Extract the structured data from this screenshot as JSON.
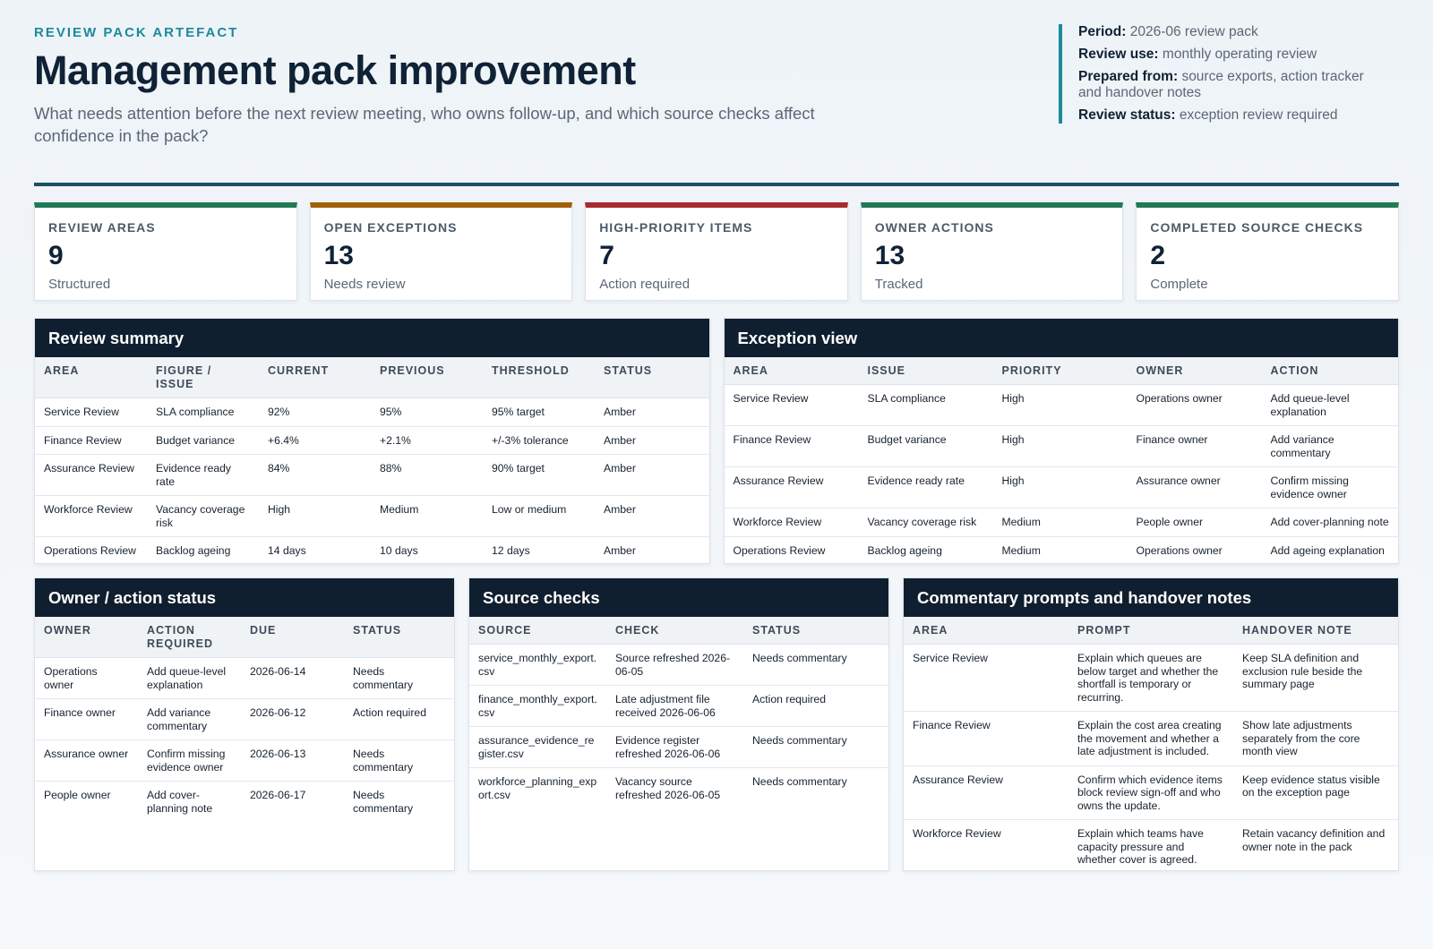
{
  "header": {
    "eyebrow": "REVIEW PACK ARTEFACT",
    "title": "Management pack improvement",
    "subtitle": "What needs attention before the next review meeting, who owns follow-up, and which source checks affect confidence in the pack?"
  },
  "meta": {
    "period_label": "Period:",
    "period_value": "2026-06 review pack",
    "use_label": "Review use:",
    "use_value": "monthly operating review",
    "prepared_label": "Prepared from:",
    "prepared_value": "source exports, action tracker and handover notes",
    "status_label": "Review status:",
    "status_value": "exception review required"
  },
  "kpis": [
    {
      "label": "REVIEW AREAS",
      "value": "9",
      "note": "Structured",
      "color": "#1f7a55"
    },
    {
      "label": "OPEN EXCEPTIONS",
      "value": "13",
      "note": "Needs review",
      "color": "#a0600a"
    },
    {
      "label": "HIGH-PRIORITY ITEMS",
      "value": "7",
      "note": "Action required",
      "color": "#a8292e"
    },
    {
      "label": "OWNER ACTIONS",
      "value": "13",
      "note": "Tracked",
      "color": "#1f7a55"
    },
    {
      "label": "COMPLETED SOURCE CHECKS",
      "value": "2",
      "note": "Complete",
      "color": "#1f7a55"
    }
  ],
  "review_summary": {
    "title": "Review summary",
    "columns": [
      "AREA",
      "FIGURE / ISSUE",
      "CURRENT",
      "PREVIOUS",
      "THRESHOLD",
      "STATUS"
    ],
    "rows": [
      [
        "Service Review",
        "SLA compliance",
        "92%",
        "95%",
        "95% target",
        "Amber"
      ],
      [
        "Finance Review",
        "Budget variance",
        "+6.4%",
        "+2.1%",
        "+/-3% tolerance",
        "Amber"
      ],
      [
        "Assurance Review",
        "Evidence ready rate",
        "84%",
        "88%",
        "90% target",
        "Amber"
      ],
      [
        "Workforce Review",
        "Vacancy coverage risk",
        "High",
        "Medium",
        "Low or medium",
        "Amber"
      ],
      [
        "Operations Review",
        "Backlog ageing",
        "14 days",
        "10 days",
        "12 days",
        "Amber"
      ]
    ]
  },
  "exception_view": {
    "title": "Exception view",
    "columns": [
      "AREA",
      "ISSUE",
      "PRIORITY",
      "OWNER",
      "ACTION"
    ],
    "rows": [
      [
        "Service Review",
        "SLA compliance",
        "High",
        "Operations owner",
        "Add queue-level explanation"
      ],
      [
        "Finance Review",
        "Budget variance",
        "High",
        "Finance owner",
        "Add variance commentary"
      ],
      [
        "Assurance Review",
        "Evidence ready rate",
        "High",
        "Assurance owner",
        "Confirm missing evidence owner"
      ],
      [
        "Workforce Review",
        "Vacancy coverage risk",
        "Medium",
        "People owner",
        "Add cover-planning note"
      ],
      [
        "Operations Review",
        "Backlog ageing",
        "Medium",
        "Operations owner",
        "Add ageing explanation"
      ]
    ]
  },
  "owner_status": {
    "title": "Owner / action status",
    "columns": [
      "OWNER",
      "ACTION REQUIRED",
      "DUE",
      "STATUS"
    ],
    "rows": [
      [
        "Operations owner",
        "Add queue-level explanation",
        "2026-06-14",
        "Needs commentary"
      ],
      [
        "Finance owner",
        "Add variance commentary",
        "2026-06-12",
        "Action required"
      ],
      [
        "Assurance owner",
        "Confirm missing evidence owner",
        "2026-06-13",
        "Needs commentary"
      ],
      [
        "People owner",
        "Add cover-planning note",
        "2026-06-17",
        "Needs commentary"
      ]
    ]
  },
  "source_checks": {
    "title": "Source checks",
    "columns": [
      "SOURCE",
      "CHECK",
      "STATUS"
    ],
    "rows": [
      [
        "service_monthly_export.csv",
        "Source refreshed 2026-06-05",
        "Needs commentary"
      ],
      [
        "finance_monthly_export.csv",
        "Late adjustment file received 2026-06-06",
        "Action required"
      ],
      [
        "assurance_evidence_register.csv",
        "Evidence register refreshed 2026-06-06",
        "Needs commentary"
      ],
      [
        "workforce_planning_export.csv",
        "Vacancy source refreshed 2026-06-05",
        "Needs commentary"
      ]
    ]
  },
  "commentary": {
    "title": "Commentary prompts and handover notes",
    "columns": [
      "AREA",
      "PROMPT",
      "HANDOVER NOTE"
    ],
    "rows": [
      [
        "Service Review",
        "Explain which queues are below target and whether the shortfall is temporary or recurring.",
        "Keep SLA definition and exclusion rule beside the summary page"
      ],
      [
        "Finance Review",
        "Explain the cost area creating the movement and whether a late adjustment is included.",
        "Show late adjustments separately from the core month view"
      ],
      [
        "Assurance Review",
        "Confirm which evidence items block review sign-off and who owns the update.",
        "Keep evidence status visible on the exception page"
      ],
      [
        "Workforce Review",
        "Explain which teams have capacity pressure and whether cover is agreed.",
        "Retain vacancy definition and owner note in the pack"
      ]
    ]
  }
}
